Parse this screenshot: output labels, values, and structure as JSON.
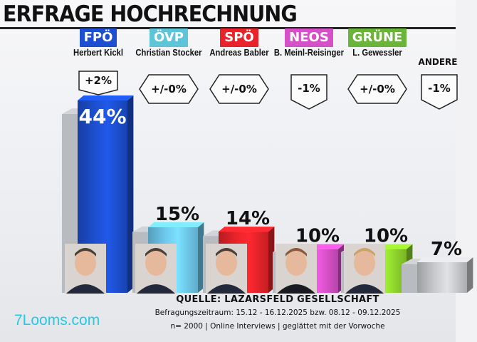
{
  "header": {
    "title": "ERFRAGE HOCHRECHNUNG"
  },
  "chart_data": {
    "type": "bar",
    "title": "ERFRAGE HOCHRECHNUNG",
    "categories": [
      "FPÖ",
      "ÖVP",
      "SPÖ",
      "NEOS",
      "GRÜNE",
      "ANDERE"
    ],
    "candidates": [
      "Herbert Kickl",
      "Christian Stocker",
      "Andreas Babler",
      "B. Meinl-Reisinger",
      "L. Gewessler",
      ""
    ],
    "values": [
      44,
      15,
      14,
      10,
      10,
      7
    ],
    "value_labels": [
      "44%",
      "15%",
      "14%",
      "10%",
      "10%",
      "7%"
    ],
    "changes": [
      "+2%",
      "+/-0%",
      "+/-0%",
      "-1%",
      "+/-0%",
      "-1%"
    ],
    "colors": [
      "#1d4fd0",
      "#6ec9ee",
      "#e8242a",
      "#d650c8",
      "#8ed32c",
      "#c8cacd"
    ],
    "ylim": [
      0,
      50
    ],
    "grid": false,
    "legend": "none"
  },
  "source": {
    "line1": "QUELLE: LAZARSFELD GESELLSCHAFT",
    "line2": "Befragungszeitraum: 15.12 - 16.12.2025 bzw. 08.12 - 09.12.2025",
    "line3": "n= 2000 | Online Interviews | geglättet mit der Vorwoche"
  },
  "watermark": {
    "text": "7Looms.com"
  }
}
